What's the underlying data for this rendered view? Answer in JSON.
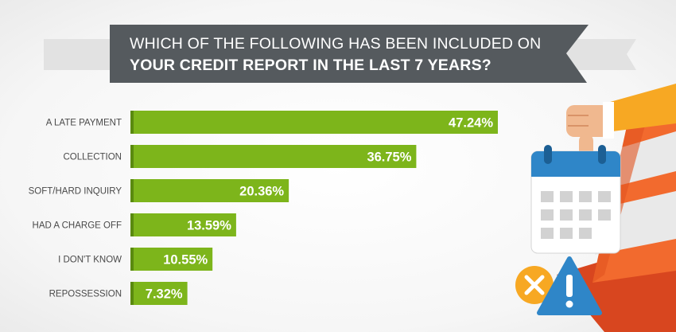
{
  "title": {
    "line1": "WHICH OF THE FOLLOWING HAS BEEN INCLUDED ON",
    "line2": "YOUR CREDIT REPORT IN THE LAST 7 YEARS?"
  },
  "colors": {
    "bar": "#7db51b",
    "bar_edge": "#5a8a0f",
    "banner": "#555a5e",
    "banner_shadow": "#e4e4e4"
  },
  "illustration": {
    "icons": [
      "thumbs-down-icon",
      "calendar-icon",
      "traffic-cone-icon",
      "x-circle-icon",
      "warning-icon"
    ]
  },
  "chart_data": {
    "type": "bar",
    "orientation": "horizontal",
    "title": "WHICH OF THE FOLLOWING HAS BEEN INCLUDED ON YOUR CREDIT REPORT IN THE LAST 7 YEARS?",
    "categories": [
      "A LATE PAYMENT",
      "COLLECTION",
      "SOFT/HARD INQUIRY",
      "HAD A CHARGE OFF",
      "I DON'T KNOW",
      "REPOSSESSION"
    ],
    "values": [
      47.24,
      36.75,
      20.36,
      13.59,
      10.55,
      7.32
    ],
    "value_labels": [
      "47.24%",
      "36.75%",
      "20.36%",
      "13.59%",
      "10.55%",
      "7.32%"
    ],
    "xlim": [
      0,
      50
    ],
    "grid": false,
    "legend": "none"
  }
}
